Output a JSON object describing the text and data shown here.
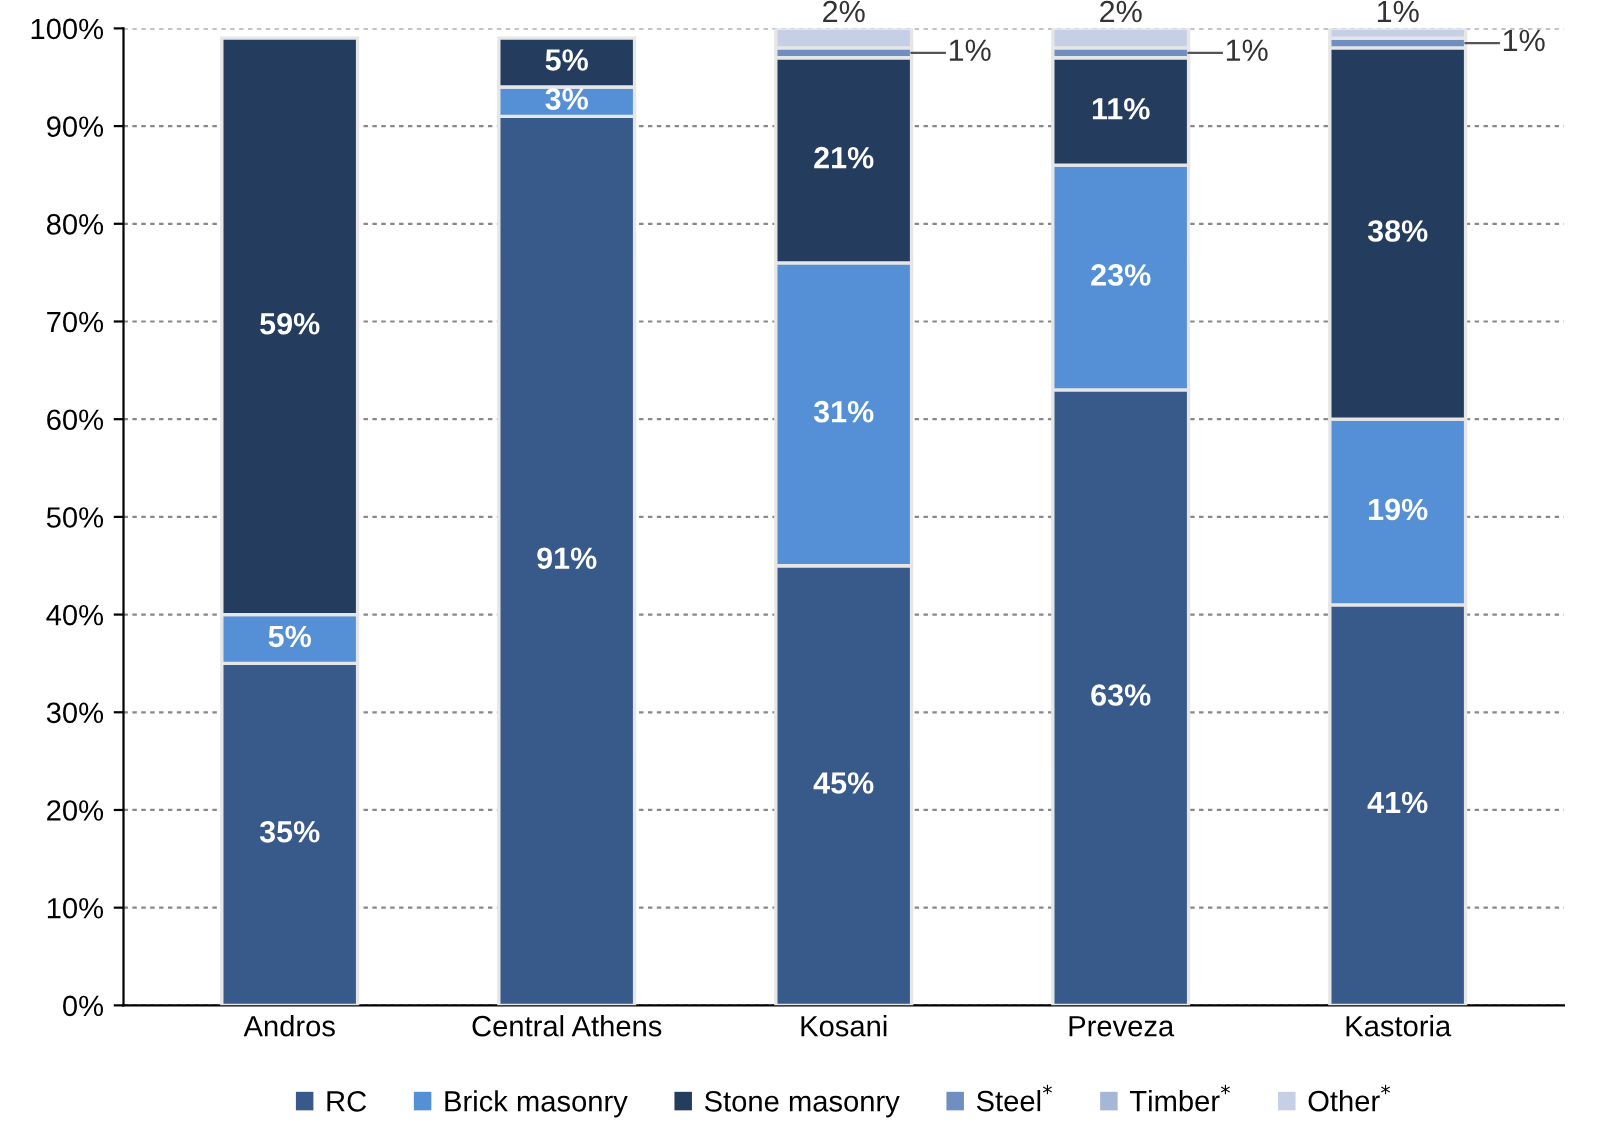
{
  "chart_data": {
    "type": "bar",
    "stacked": true,
    "categories": [
      "Andros",
      "Central Athens",
      "Kosani",
      "Preveza",
      "Kastoria"
    ],
    "series": [
      {
        "name": "RC",
        "color": "#375a8a",
        "values": [
          35,
          91,
          45,
          63,
          41
        ],
        "value_labels": [
          "35%",
          "91%",
          "45%",
          "63%",
          "41%"
        ]
      },
      {
        "name": "Brick masonry",
        "color": "#5590d6",
        "values": [
          5,
          3,
          31,
          23,
          19
        ],
        "value_labels": [
          "5%",
          "3%",
          "31%",
          "23%",
          "19%"
        ]
      },
      {
        "name": "Stone masonry",
        "color": "#243d5e",
        "values": [
          59,
          5,
          21,
          11,
          38
        ],
        "value_labels": [
          "59%",
          "5%",
          "21%",
          "11%",
          "38%"
        ]
      },
      {
        "name": "Steel$^{*}$",
        "color": "#6e8fc0",
        "values": [
          null,
          null,
          1,
          1,
          1
        ],
        "value_labels": [
          null,
          null,
          "1%",
          "1%",
          "1%"
        ]
      },
      {
        "name": "Timber$^{*}$",
        "color": "#a5b6d6",
        "values": [
          null,
          null,
          null,
          null,
          null
        ],
        "value_labels": [
          null,
          null,
          null,
          null,
          null
        ]
      },
      {
        "name": "Other$^{*}$",
        "color": "#c5d0e6",
        "values": [
          null,
          null,
          2,
          2,
          1
        ],
        "value_labels": [
          null,
          null,
          "2%",
          "2%",
          "1%"
        ]
      }
    ],
    "ylim": [
      0,
      100
    ],
    "yticks": [
      {
        "value": 0,
        "label": "0%"
      },
      {
        "value": 10,
        "label": "10%"
      },
      {
        "value": 20,
        "label": "20%"
      },
      {
        "value": 30,
        "label": "30%"
      },
      {
        "value": 40,
        "label": "40%"
      },
      {
        "value": 50,
        "label": "50%"
      },
      {
        "value": 60,
        "label": "60%"
      },
      {
        "value": 70,
        "label": "70%"
      },
      {
        "value": 80,
        "label": "80%"
      },
      {
        "value": 90,
        "label": "90%"
      },
      {
        "value": 100,
        "label": "100%"
      }
    ],
    "grid": "y",
    "legend": "bottom"
  }
}
